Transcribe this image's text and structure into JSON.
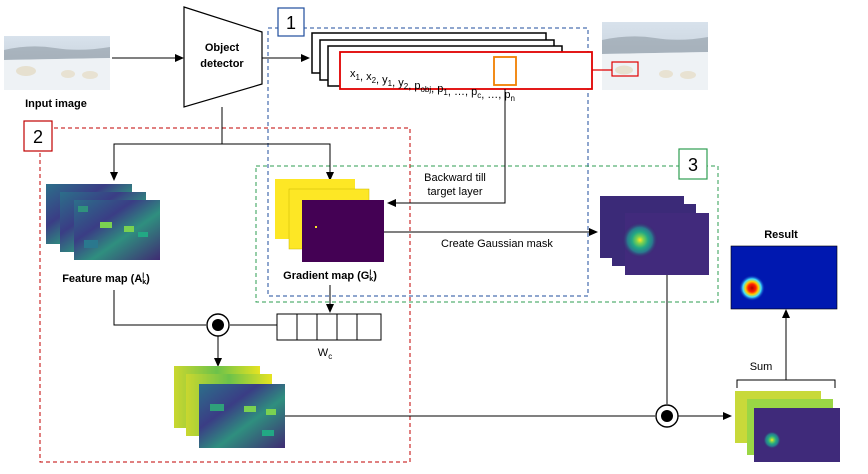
{
  "input_label": "Input image",
  "detector": {
    "line1": "Object",
    "line2": "detector"
  },
  "section_numbers": [
    "1",
    "2",
    "3"
  ],
  "vector": {
    "parts": [
      {
        "t": "x",
        "s": "1"
      },
      {
        "t": ", "
      },
      {
        "t": "x",
        "s": "2"
      },
      {
        "t": ", "
      },
      {
        "t": "y",
        "s": "1"
      },
      {
        "t": ", "
      },
      {
        "t": "y",
        "s": "2"
      },
      {
        "t": ", "
      },
      {
        "t": "p",
        "s": "obj"
      },
      {
        "t": ", "
      },
      {
        "t": "p",
        "s": "1"
      },
      {
        "t": ", …, "
      },
      {
        "t": "p",
        "s": "c"
      },
      {
        "t": ", …, "
      },
      {
        "t": "p",
        "s": "n"
      }
    ]
  },
  "backward_line1": "Backward till",
  "backward_line2": "target layer",
  "gaussian_label": "Create Gaussian mask",
  "feature_map_label": {
    "main": "Feature map (A",
    "sup": "l",
    "sub": "k",
    "end": ")"
  },
  "gradient_map_label": {
    "main": "Gradient map (G",
    "sup": "l",
    "sub": "k",
    "end": ")"
  },
  "weights_label": {
    "main": "W",
    "sub": "c"
  },
  "sum_label": "Sum",
  "result_label": "Result",
  "colors": {
    "section1": "#1f4e9c",
    "section2": "#c00000",
    "section3": "#2e9e52",
    "highlight_box": "#e00000",
    "pc_box": "#f08000"
  }
}
